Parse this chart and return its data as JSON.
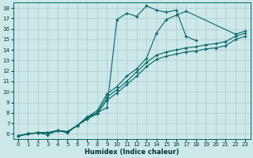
{
  "xlabel": "Humidex (Indice chaleur)",
  "xlim": [
    -0.5,
    23.5
  ],
  "ylim": [
    5.5,
    18.5
  ],
  "xticks": [
    0,
    1,
    2,
    3,
    4,
    5,
    6,
    7,
    8,
    9,
    10,
    11,
    12,
    13,
    14,
    15,
    16,
    17,
    18,
    19,
    20,
    21,
    22,
    23
  ],
  "yticks": [
    6,
    7,
    8,
    9,
    10,
    11,
    12,
    13,
    14,
    15,
    16,
    17,
    18
  ],
  "background_color": "#cde8e8",
  "grid_color": "#b0c8c8",
  "line_color": "#006666",
  "line1_x": [
    0,
    1,
    2,
    3,
    4,
    5,
    6,
    7,
    8,
    9,
    10,
    11,
    12,
    13,
    14,
    15,
    16,
    17,
    22,
    23
  ],
  "line1_y": [
    5.8,
    6.0,
    6.1,
    6.1,
    6.3,
    6.2,
    6.8,
    7.6,
    8.2,
    9.8,
    10.5,
    11.5,
    12.2,
    13.2,
    15.6,
    16.9,
    17.3,
    17.7,
    15.5,
    15.8
  ],
  "line2_x": [
    0,
    2,
    3,
    4,
    5,
    6,
    7,
    8,
    9,
    10,
    11,
    12,
    13,
    14,
    15,
    16,
    17,
    18
  ],
  "line2_y": [
    5.8,
    6.1,
    5.9,
    6.3,
    6.1,
    6.8,
    7.6,
    8.0,
    8.5,
    16.9,
    17.5,
    17.2,
    18.2,
    17.8,
    17.6,
    17.8,
    15.3,
    14.9
  ],
  "line3_x": [
    0,
    1,
    2,
    3,
    4,
    5,
    6,
    7,
    8,
    9,
    10,
    11,
    12,
    13,
    14,
    15,
    16,
    17,
    18,
    19,
    20,
    21,
    22,
    23
  ],
  "line3_y": [
    5.8,
    6.0,
    6.1,
    6.1,
    6.3,
    6.2,
    6.8,
    7.5,
    8.0,
    9.5,
    10.2,
    11.0,
    11.9,
    12.8,
    13.5,
    13.8,
    14.0,
    14.2,
    14.3,
    14.5,
    14.6,
    14.8,
    15.3,
    15.6
  ],
  "line4_x": [
    0,
    1,
    2,
    3,
    4,
    5,
    6,
    7,
    8,
    9,
    10,
    11,
    12,
    13,
    14,
    15,
    16,
    17,
    18,
    19,
    20,
    21,
    22,
    23
  ],
  "line4_y": [
    5.8,
    6.0,
    6.1,
    6.1,
    6.3,
    6.2,
    6.8,
    7.4,
    7.9,
    9.2,
    9.9,
    10.7,
    11.5,
    12.4,
    13.1,
    13.4,
    13.6,
    13.8,
    13.9,
    14.1,
    14.2,
    14.4,
    15.0,
    15.3
  ]
}
